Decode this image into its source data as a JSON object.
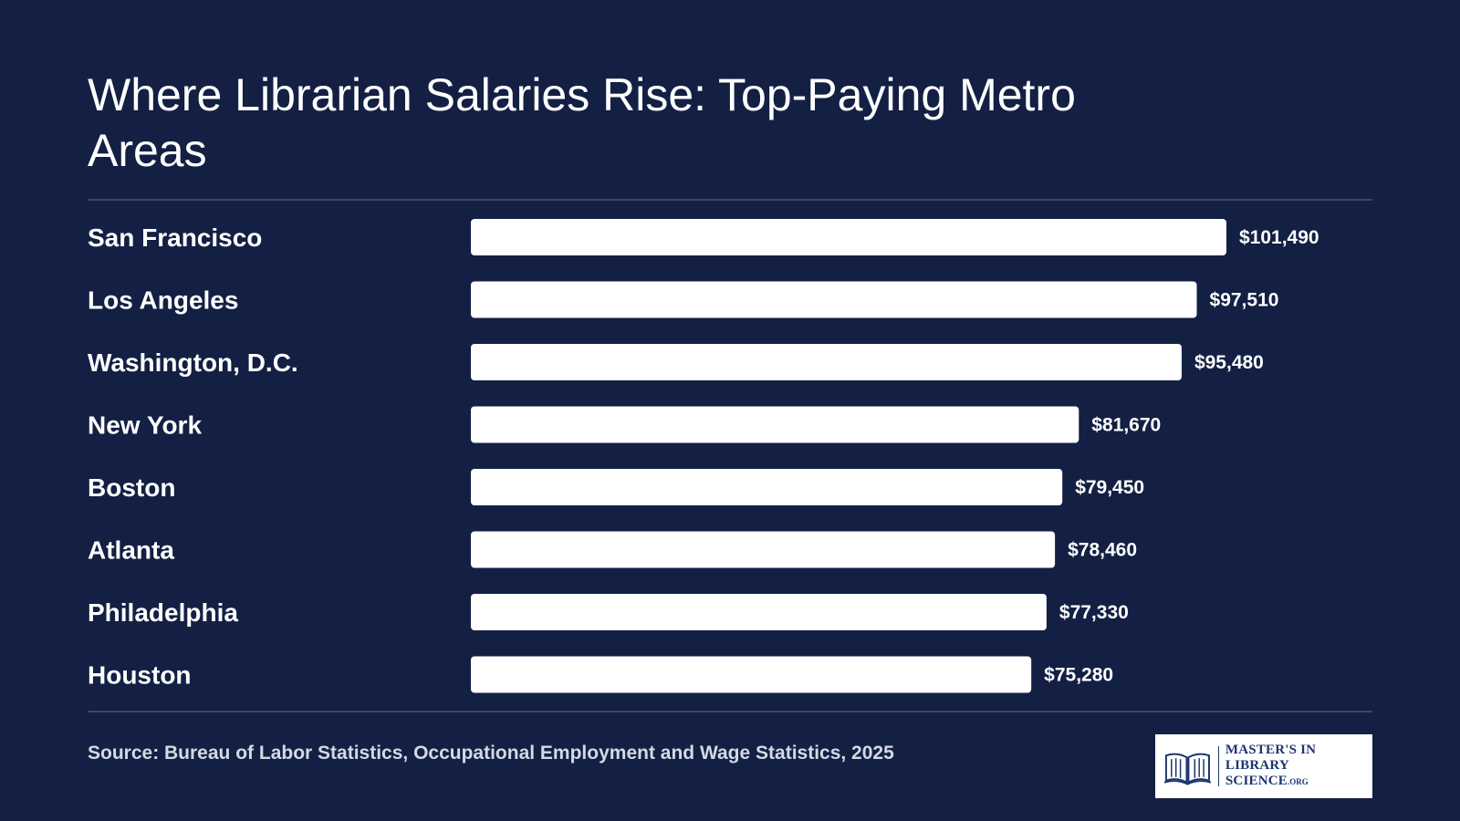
{
  "header": {
    "title": "Where Librarian Salaries Rise: Top-Paying Metro Areas"
  },
  "chart_data": {
    "type": "bar",
    "orientation": "horizontal",
    "categories": [
      "San Francisco",
      "Los Angeles",
      "Washington, D.C.",
      "New York",
      "Boston",
      "Atlanta",
      "Philadelphia",
      "Houston"
    ],
    "values": [
      101490,
      97510,
      95480,
      81670,
      79450,
      78460,
      77330,
      75280
    ],
    "value_labels": [
      "$101,490",
      "$97,510",
      "$95,480",
      "$81,670",
      "$79,450",
      "$78,460",
      "$77,330",
      "$75,280"
    ],
    "title": "Where Librarian Salaries Rise: Top-Paying Metro Areas",
    "xlabel": "",
    "ylabel": "",
    "xlim": [
      0,
      101490
    ],
    "grid": false,
    "legend": "none"
  },
  "footer": {
    "source": "Source: Bureau of Labor Statistics, Occupational Employment and Wage Statistics, 2025"
  },
  "logo": {
    "line1": "MASTER'S IN",
    "line2": "LIBRARY SCIENCE",
    "suffix": ".ORG",
    "icon": "open-book-icon"
  },
  "colors": {
    "background": "#132044",
    "bar": "#ffffff",
    "text": "#ffffff",
    "logo_text": "#1d3570"
  }
}
